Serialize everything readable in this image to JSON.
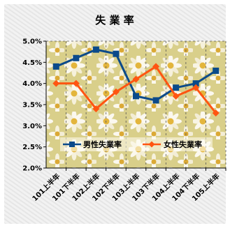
{
  "chart_data": {
    "type": "line",
    "title": "失 業 率",
    "categories": [
      "101上半年",
      "101下半年",
      "102上半年",
      "102下半年",
      "103上半年",
      "103下半年",
      "104上半年",
      "104下半年",
      "105上半年"
    ],
    "ylim": [
      2.0,
      5.0
    ],
    "yticks": [
      "2.0%",
      "2.5%",
      "3.0%",
      "3.5%",
      "4.0%",
      "4.5%",
      "5.0%"
    ],
    "ytick_values": [
      2.0,
      2.5,
      3.0,
      3.5,
      4.0,
      4.5,
      5.0
    ],
    "grid": "vertical",
    "legend_placement": "inside-lower",
    "series": [
      {
        "name": "男性失業率",
        "values": [
          4.4,
          4.6,
          4.8,
          4.7,
          3.7,
          3.6,
          3.9,
          4.0,
          4.3
        ],
        "color": "#0b4a8a",
        "marker": "square"
      },
      {
        "name": "女性失業率",
        "values": [
          4.0,
          4.0,
          3.4,
          3.8,
          4.1,
          4.4,
          3.7,
          3.9,
          3.3
        ],
        "color": "#ff5511",
        "marker": "diamond"
      }
    ]
  }
}
